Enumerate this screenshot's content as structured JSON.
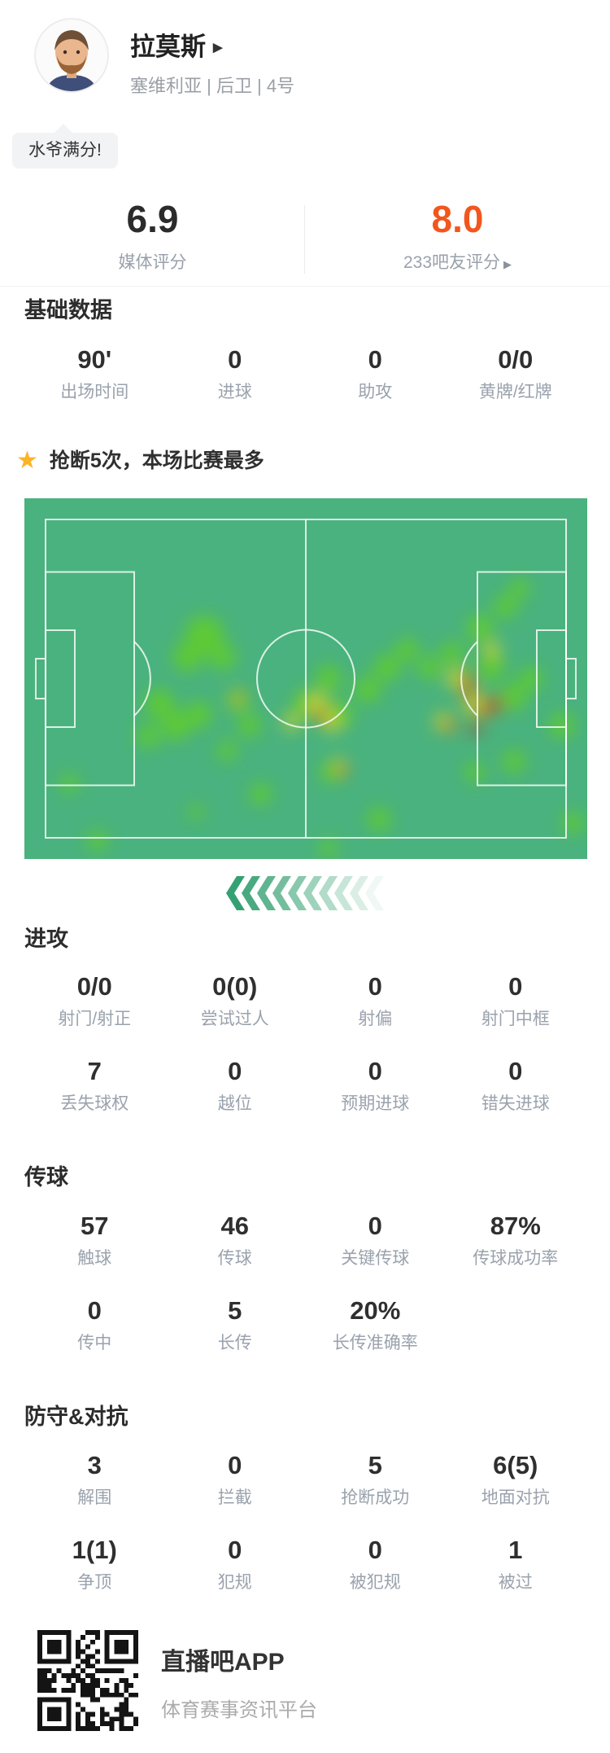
{
  "header": {
    "player_name": "拉莫斯",
    "name_arrow": "▶",
    "team_info": "塞维利亚 | 后卫 | 4号",
    "badge_text": "水爷满分!"
  },
  "ratings": {
    "media": {
      "score": "6.9",
      "label": "媒体评分"
    },
    "fans": {
      "score": "8.0",
      "label": "233吧友评分",
      "arrow": "▶"
    }
  },
  "highlight": {
    "star_icon": "★",
    "text": "抢断5次，本场比赛最多"
  },
  "sections": {
    "basic": {
      "title": "基础数据",
      "stats": [
        {
          "value": "90'",
          "label": "出场时间"
        },
        {
          "value": "0",
          "label": "进球"
        },
        {
          "value": "0",
          "label": "助攻"
        },
        {
          "value": "0/0",
          "label": "黄牌/红牌"
        }
      ]
    },
    "attack": {
      "title": "进攻",
      "stats": [
        {
          "value": "0/0",
          "label": "射门/射正"
        },
        {
          "value": "0(0)",
          "label": "尝试过人"
        },
        {
          "value": "0",
          "label": "射偏"
        },
        {
          "value": "0",
          "label": "射门中框"
        },
        {
          "value": "7",
          "label": "丢失球权"
        },
        {
          "value": "0",
          "label": "越位"
        },
        {
          "value": "0",
          "label": "预期进球"
        },
        {
          "value": "0",
          "label": "错失进球"
        }
      ]
    },
    "passing": {
      "title": "传球",
      "stats": [
        {
          "value": "57",
          "label": "触球"
        },
        {
          "value": "46",
          "label": "传球"
        },
        {
          "value": "0",
          "label": "关键传球"
        },
        {
          "value": "87%",
          "label": "传球成功率"
        },
        {
          "value": "0",
          "label": "传中"
        },
        {
          "value": "5",
          "label": "长传"
        },
        {
          "value": "20%",
          "label": "长传准确率"
        }
      ]
    },
    "defense": {
      "title": "防守&对抗",
      "stats": [
        {
          "value": "3",
          "label": "解围"
        },
        {
          "value": "0",
          "label": "拦截"
        },
        {
          "value": "5",
          "label": "抢断成功"
        },
        {
          "value": "6(5)",
          "label": "地面对抗"
        },
        {
          "value": "1(1)",
          "label": "争顶"
        },
        {
          "value": "0",
          "label": "犯规"
        },
        {
          "value": "0",
          "label": "被犯规"
        },
        {
          "value": "1",
          "label": "被过"
        }
      ]
    }
  },
  "heatmap": {
    "type": "heatmap",
    "pitch_color": "#4ab27e",
    "line_color": "rgba(255,255,255,0.8)",
    "colors": {
      "g": "#5fcb33",
      "y": "#c6d434",
      "o": "#cc7e28",
      "r": "#b03a28"
    },
    "points": [
      [
        0.32,
        0.38,
        24,
        "g"
      ],
      [
        0.29,
        0.44,
        18,
        "g"
      ],
      [
        0.352,
        0.44,
        16,
        "g"
      ],
      [
        0.24,
        0.57,
        18,
        "g"
      ],
      [
        0.27,
        0.63,
        18,
        "g"
      ],
      [
        0.22,
        0.66,
        14,
        "g"
      ],
      [
        0.31,
        0.6,
        16,
        "g"
      ],
      [
        0.38,
        0.56,
        14,
        "g"
      ],
      [
        0.4,
        0.63,
        14,
        "g"
      ],
      [
        0.36,
        0.7,
        12,
        "g"
      ],
      [
        0.42,
        0.82,
        13,
        "g"
      ],
      [
        0.08,
        0.79,
        11,
        "g"
      ],
      [
        0.13,
        0.95,
        12,
        "g"
      ],
      [
        0.305,
        0.87,
        9,
        "g"
      ],
      [
        0.54,
        0.5,
        16,
        "g"
      ],
      [
        0.5,
        0.57,
        16,
        "g"
      ],
      [
        0.56,
        0.6,
        16,
        "g"
      ],
      [
        0.545,
        0.76,
        13,
        "g"
      ],
      [
        0.61,
        0.53,
        16,
        "g"
      ],
      [
        0.645,
        0.47,
        16,
        "g"
      ],
      [
        0.68,
        0.42,
        14,
        "g"
      ],
      [
        0.72,
        0.47,
        14,
        "g"
      ],
      [
        0.76,
        0.43,
        14,
        "g"
      ],
      [
        0.81,
        0.36,
        16,
        "g"
      ],
      [
        0.855,
        0.3,
        14,
        "g"
      ],
      [
        0.88,
        0.25,
        12,
        "g"
      ],
      [
        0.83,
        0.47,
        16,
        "g"
      ],
      [
        0.87,
        0.55,
        16,
        "g"
      ],
      [
        0.9,
        0.5,
        14,
        "g"
      ],
      [
        0.955,
        0.63,
        15,
        "g"
      ],
      [
        0.87,
        0.73,
        14,
        "g"
      ],
      [
        0.8,
        0.76,
        12,
        "g"
      ],
      [
        0.63,
        0.89,
        14,
        "g"
      ],
      [
        0.54,
        0.97,
        11,
        "g"
      ],
      [
        0.975,
        0.9,
        13,
        "g"
      ],
      [
        0.52,
        0.57,
        14,
        "y"
      ],
      [
        0.545,
        0.62,
        12,
        "y"
      ],
      [
        0.475,
        0.62,
        10,
        "y"
      ],
      [
        0.56,
        0.74,
        8,
        "y"
      ],
      [
        0.77,
        0.5,
        13,
        "y"
      ],
      [
        0.8,
        0.57,
        14,
        "y"
      ],
      [
        0.745,
        0.62,
        11,
        "y"
      ],
      [
        0.83,
        0.42,
        10,
        "y"
      ],
      [
        0.38,
        0.555,
        8,
        "y"
      ],
      [
        0.79,
        0.52,
        9,
        "o"
      ],
      [
        0.815,
        0.585,
        10,
        "o"
      ],
      [
        0.755,
        0.63,
        8,
        "o"
      ],
      [
        0.565,
        0.755,
        7,
        "o"
      ],
      [
        0.525,
        0.6,
        8,
        "o"
      ],
      [
        0.382,
        0.555,
        5,
        "o"
      ],
      [
        0.838,
        0.572,
        9,
        "r"
      ],
      [
        0.802,
        0.638,
        7,
        "r"
      ],
      [
        0.787,
        0.5,
        6,
        "r"
      ],
      [
        0.787,
        0.545,
        6,
        "r"
      ],
      [
        0.383,
        0.555,
        4,
        "r"
      ],
      [
        0.527,
        0.605,
        5,
        "r"
      ]
    ]
  },
  "attack_direction": {
    "count": 10,
    "color": "#35a172"
  },
  "footer": {
    "app_name": "直播吧APP",
    "app_slogan": "体育赛事资讯平台"
  },
  "accent_colors": {
    "fan_score_orange": "#f2561c",
    "star_yellow": "#fbb32a",
    "text_dark": "#2f2f2f",
    "label_gray": "#9aa2ad"
  }
}
